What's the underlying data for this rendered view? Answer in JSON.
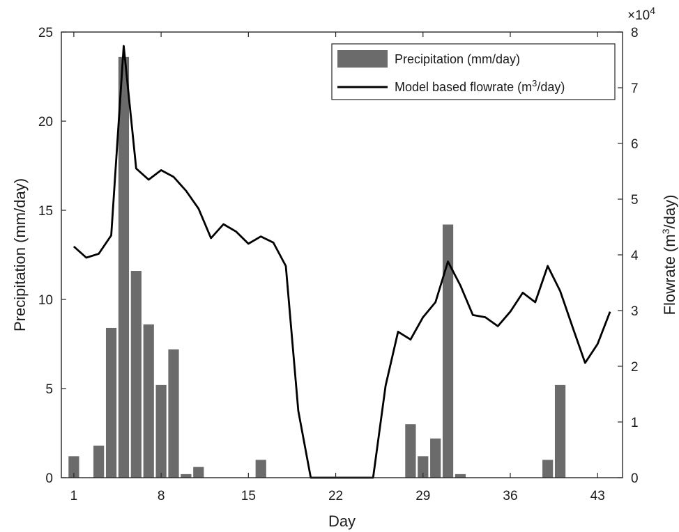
{
  "chart_data": {
    "type": "bar",
    "xlabel": "Day",
    "ylabel": "Precipitation (mm/day)",
    "y2label_prefix": "Flowrate (m",
    "y2label_sup": "3",
    "y2label_suffix": "/day)",
    "y2_multiplier_base": "×10",
    "y2_multiplier_exp": "4",
    "xlim": [
      0,
      45
    ],
    "ylim": [
      0,
      25
    ],
    "y2lim": [
      0,
      8
    ],
    "xticks": [
      1,
      8,
      15,
      22,
      29,
      36,
      43
    ],
    "yticks": [
      0,
      5,
      10,
      15,
      20,
      25
    ],
    "y2ticks": [
      0,
      1,
      2,
      3,
      4,
      5,
      6,
      7,
      8
    ],
    "legend_position": "top-right",
    "legend": {
      "bar_label": "Precipitation (mm/day)",
      "line_label_prefix": "Model based flowrate (m",
      "line_label_sup": "3",
      "line_label_suffix": "/day)"
    },
    "bars": {
      "color": "#6b6b6b",
      "x": [
        1,
        3,
        4,
        5,
        6,
        7,
        8,
        9,
        10,
        11,
        16,
        28,
        29,
        30,
        31,
        32,
        39,
        40
      ],
      "values": [
        1.2,
        1.8,
        8.4,
        23.6,
        11.6,
        8.6,
        5.2,
        7.2,
        0.2,
        0.6,
        1.0,
        3.0,
        1.2,
        2.2,
        14.2,
        0.2,
        1.0,
        5.2
      ]
    },
    "line": {
      "color": "#000000",
      "x": [
        1,
        2,
        3,
        4,
        5,
        6,
        7,
        8,
        9,
        10,
        11,
        12,
        13,
        14,
        15,
        16,
        17,
        18,
        19,
        20,
        21,
        22,
        23,
        24,
        25,
        26,
        27,
        28,
        29,
        30,
        31,
        32,
        33,
        34,
        35,
        36,
        37,
        38,
        39,
        40,
        41,
        42,
        43,
        44
      ],
      "values": [
        4.15,
        3.95,
        4.02,
        4.35,
        7.75,
        5.55,
        5.35,
        5.52,
        5.4,
        5.15,
        4.83,
        4.3,
        4.55,
        4.42,
        4.2,
        4.33,
        4.22,
        3.8,
        1.2,
        0.0,
        0.0,
        0.0,
        0.0,
        0.0,
        0.0,
        1.65,
        2.62,
        2.48,
        2.88,
        3.15,
        3.88,
        3.45,
        2.92,
        2.88,
        2.72,
        2.98,
        3.32,
        3.15,
        3.8,
        3.35,
        2.7,
        2.06,
        2.4,
        2.98
      ]
    }
  }
}
